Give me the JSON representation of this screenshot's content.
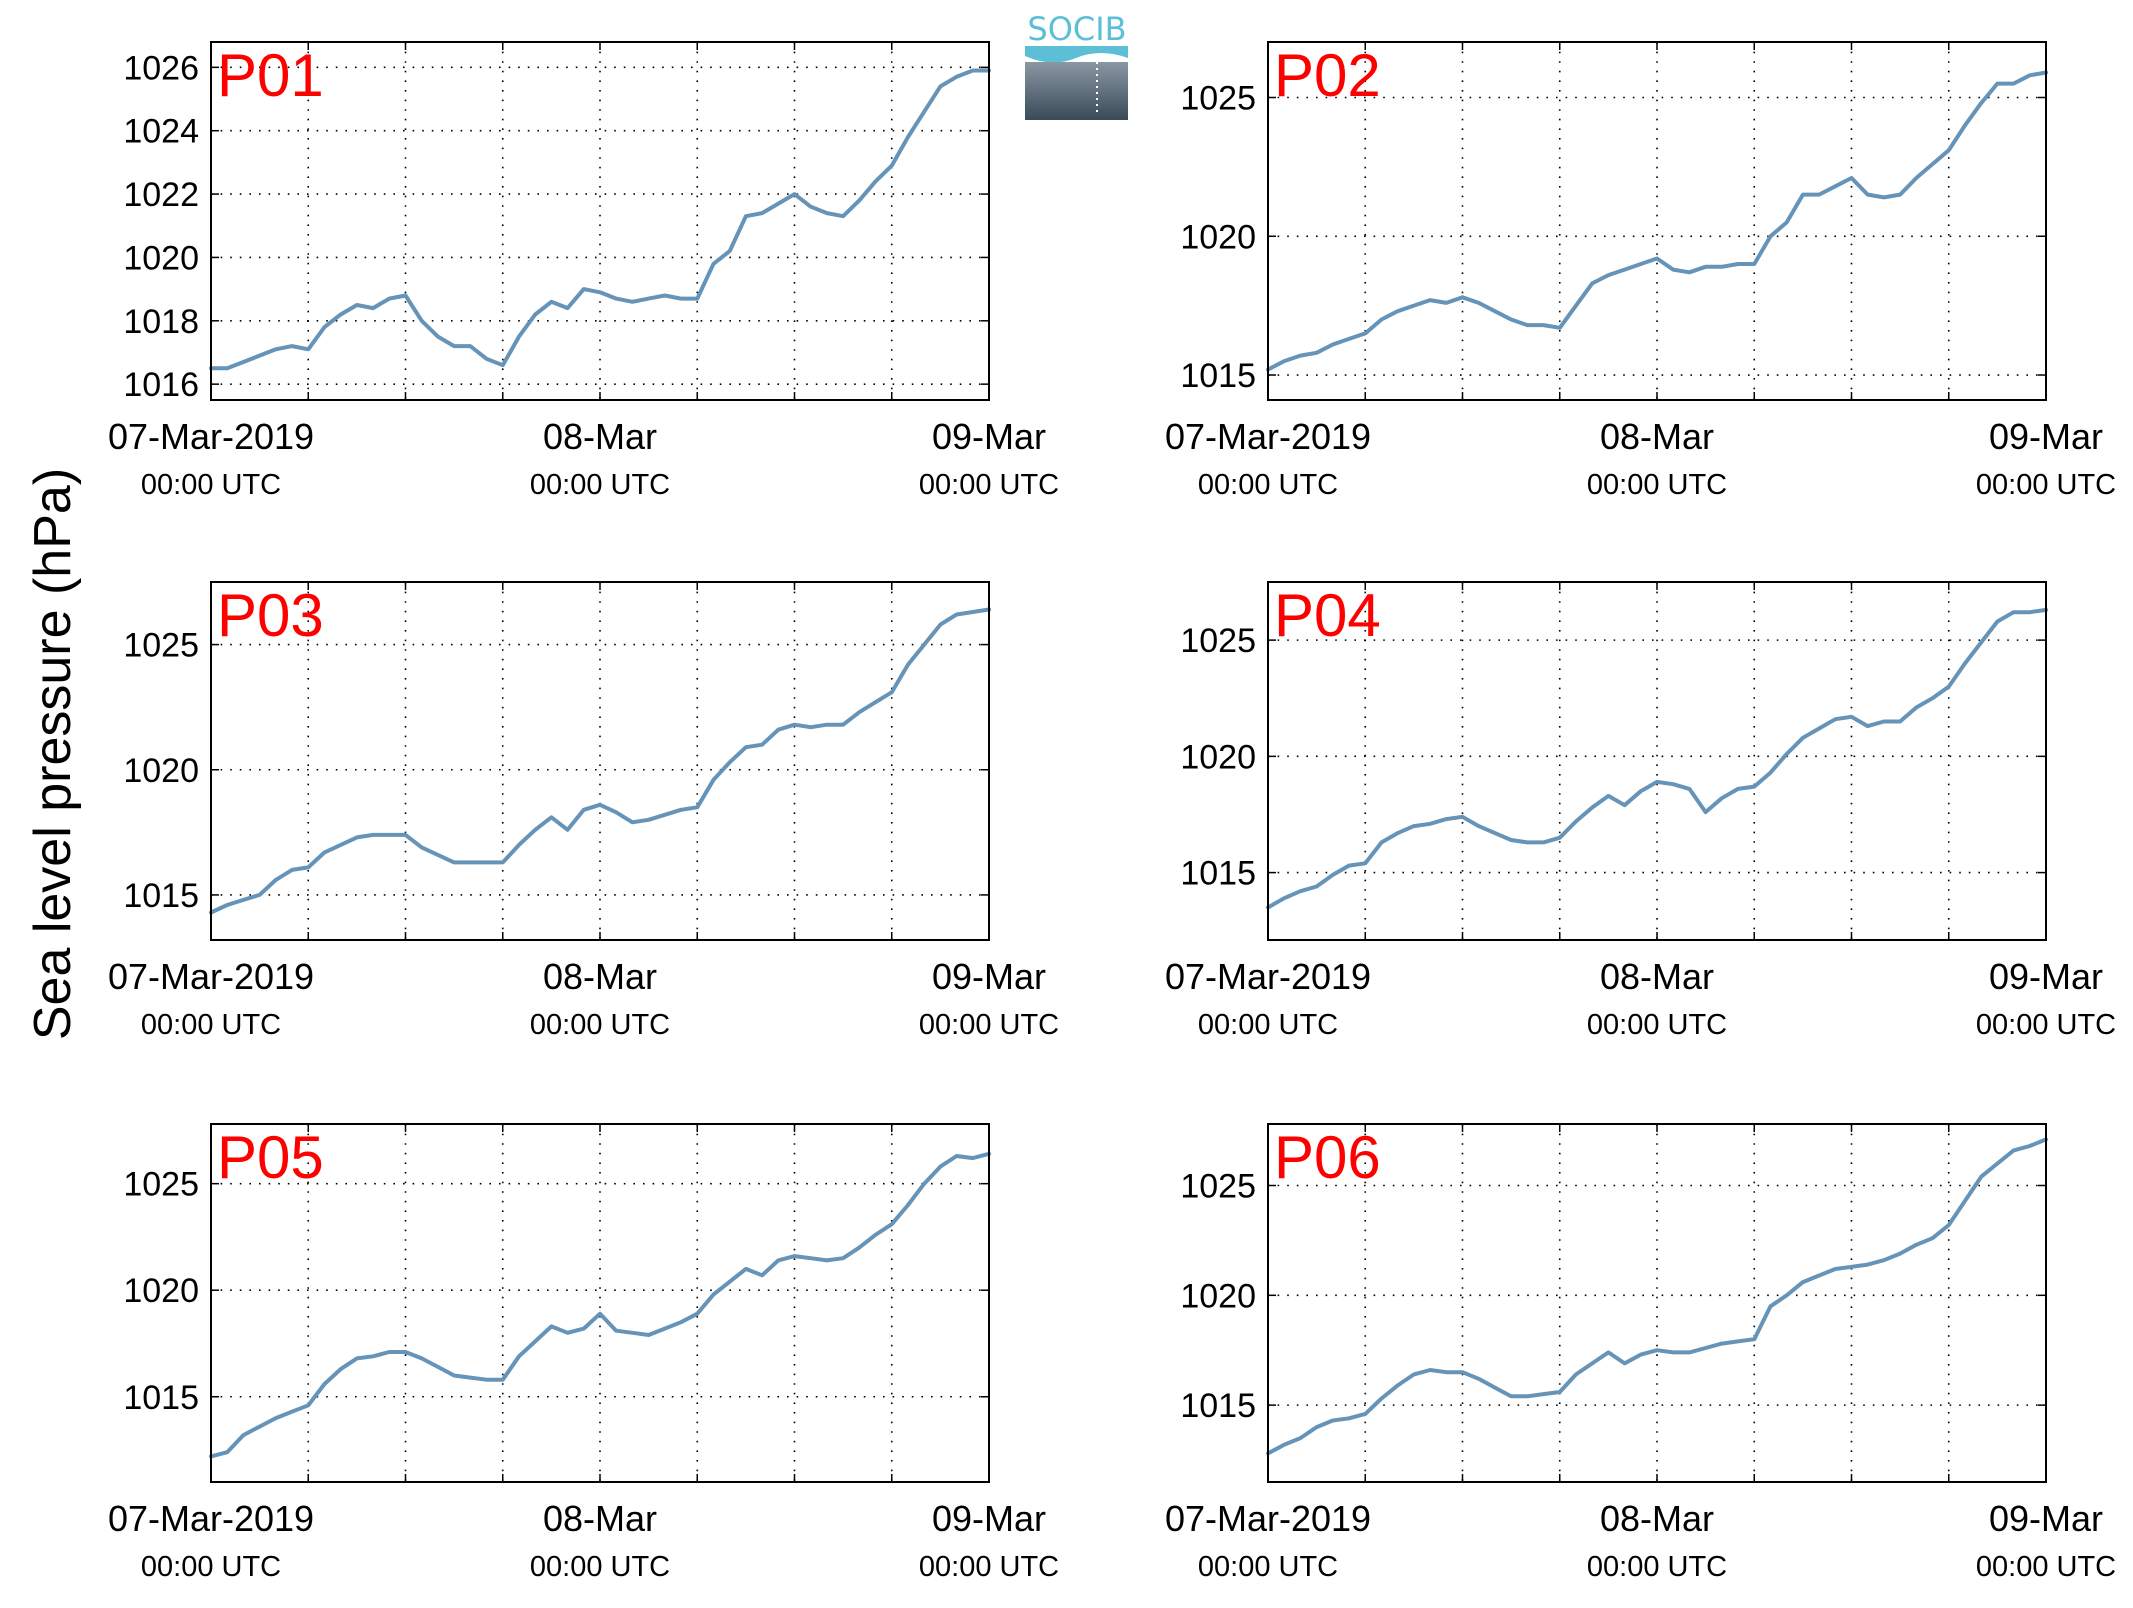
{
  "figure": {
    "ylabel": "Sea level pressure (hPa)",
    "logo_text": "SOCIB",
    "line_color": "#6693b8",
    "label_color": "#ff0000"
  },
  "chart_data": [
    {
      "type": "line",
      "title": "P01",
      "ylim": [
        1015.5,
        1026.8
      ],
      "yticks": [
        1016,
        1018,
        1020,
        1022,
        1024,
        1026
      ],
      "xlim": [
        0,
        48
      ],
      "xticks": [
        0,
        24,
        48
      ],
      "xticklabels": [
        [
          "07-Mar-2019",
          "00:00 UTC"
        ],
        [
          "08-Mar",
          "00:00 UTC"
        ],
        [
          "09-Mar",
          "00:00 UTC"
        ]
      ],
      "grid": true,
      "series": [
        {
          "x": [
            0,
            1,
            2,
            3,
            4,
            5,
            6,
            7,
            8,
            9,
            10,
            11,
            12,
            13,
            14,
            15,
            16,
            17,
            18,
            19,
            20,
            21,
            22,
            23,
            24,
            25,
            26,
            27,
            28,
            29,
            30,
            31,
            32,
            33,
            34,
            35,
            36,
            37,
            38,
            39,
            40,
            41,
            42,
            43,
            44,
            45,
            46,
            47,
            48
          ],
          "y": [
            1016.5,
            1016.5,
            1016.7,
            1016.9,
            1017.1,
            1017.2,
            1017.1,
            1017.8,
            1018.2,
            1018.5,
            1018.4,
            1018.7,
            1018.8,
            1018.0,
            1017.5,
            1017.2,
            1017.2,
            1016.8,
            1016.6,
            1017.5,
            1018.2,
            1018.6,
            1018.4,
            1019.0,
            1018.9,
            1018.7,
            1018.6,
            1018.7,
            1018.8,
            1018.7,
            1018.7,
            1019.8,
            1020.2,
            1021.3,
            1021.4,
            1021.7,
            1022.0,
            1021.6,
            1021.4,
            1021.3,
            1021.8,
            1022.4,
            1022.9,
            1023.8,
            1024.6,
            1025.4,
            1025.7,
            1025.9,
            1025.9
          ]
        }
      ]
    },
    {
      "type": "line",
      "title": "P02",
      "ylim": [
        1014.1,
        1027.0
      ],
      "yticks": [
        1015,
        1020,
        1025
      ],
      "xlim": [
        0,
        48
      ],
      "xticks": [
        0,
        24,
        48
      ],
      "xticklabels": [
        [
          "07-Mar-2019",
          "00:00 UTC"
        ],
        [
          "08-Mar",
          "00:00 UTC"
        ],
        [
          "09-Mar",
          "00:00 UTC"
        ]
      ],
      "grid": true,
      "series": [
        {
          "x": [
            0,
            1,
            2,
            3,
            4,
            5,
            6,
            7,
            8,
            9,
            10,
            11,
            12,
            13,
            14,
            15,
            16,
            17,
            18,
            19,
            20,
            21,
            22,
            23,
            24,
            25,
            26,
            27,
            28,
            29,
            30,
            31,
            32,
            33,
            34,
            35,
            36,
            37,
            38,
            39,
            40,
            41,
            42,
            43,
            44,
            45,
            46,
            47,
            48
          ],
          "y": [
            1015.2,
            1015.5,
            1015.7,
            1015.8,
            1016.1,
            1016.3,
            1016.5,
            1017.0,
            1017.3,
            1017.5,
            1017.7,
            1017.6,
            1017.8,
            1017.6,
            1017.3,
            1017.0,
            1016.8,
            1016.8,
            1016.7,
            1017.5,
            1018.3,
            1018.6,
            1018.8,
            1019.0,
            1019.2,
            1018.8,
            1018.7,
            1018.9,
            1018.9,
            1019.0,
            1019.0,
            1020.0,
            1020.5,
            1021.5,
            1021.5,
            1021.8,
            1022.1,
            1021.5,
            1021.4,
            1021.5,
            1022.1,
            1022.6,
            1023.1,
            1024.0,
            1024.8,
            1025.5,
            1025.5,
            1025.8,
            1025.9
          ]
        }
      ]
    },
    {
      "type": "line",
      "title": "P03",
      "ylim": [
        1013.2,
        1027.5
      ],
      "yticks": [
        1015,
        1020,
        1025
      ],
      "xlim": [
        0,
        48
      ],
      "xticks": [
        0,
        24,
        48
      ],
      "xticklabels": [
        [
          "07-Mar-2019",
          "00:00 UTC"
        ],
        [
          "08-Mar",
          "00:00 UTC"
        ],
        [
          "09-Mar",
          "00:00 UTC"
        ]
      ],
      "grid": true,
      "series": [
        {
          "x": [
            0,
            1,
            2,
            3,
            4,
            5,
            6,
            7,
            8,
            9,
            10,
            11,
            12,
            13,
            14,
            15,
            16,
            17,
            18,
            19,
            20,
            21,
            22,
            23,
            24,
            25,
            26,
            27,
            28,
            29,
            30,
            31,
            32,
            33,
            34,
            35,
            36,
            37,
            38,
            39,
            40,
            41,
            42,
            43,
            44,
            45,
            46,
            47,
            48
          ],
          "y": [
            1014.3,
            1014.6,
            1014.8,
            1015.0,
            1015.6,
            1016.0,
            1016.1,
            1016.7,
            1017.0,
            1017.3,
            1017.4,
            1017.4,
            1017.4,
            1016.9,
            1016.6,
            1016.3,
            1016.3,
            1016.3,
            1016.3,
            1017.0,
            1017.6,
            1018.1,
            1017.6,
            1018.4,
            1018.6,
            1018.3,
            1017.9,
            1018.0,
            1018.2,
            1018.4,
            1018.5,
            1019.6,
            1020.3,
            1020.9,
            1021.0,
            1021.6,
            1021.8,
            1021.7,
            1021.8,
            1021.8,
            1022.3,
            1022.7,
            1023.1,
            1024.2,
            1025.0,
            1025.8,
            1026.2,
            1026.3,
            1026.4
          ]
        }
      ]
    },
    {
      "type": "line",
      "title": "P04",
      "ylim": [
        1012.1,
        1027.5
      ],
      "yticks": [
        1015,
        1020,
        1025
      ],
      "xlim": [
        0,
        48
      ],
      "xticks": [
        0,
        24,
        48
      ],
      "xticklabels": [
        [
          "07-Mar-2019",
          "00:00 UTC"
        ],
        [
          "08-Mar",
          "00:00 UTC"
        ],
        [
          "09-Mar",
          "00:00 UTC"
        ]
      ],
      "grid": true,
      "series": [
        {
          "x": [
            0,
            1,
            2,
            3,
            4,
            5,
            6,
            7,
            8,
            9,
            10,
            11,
            12,
            13,
            14,
            15,
            16,
            17,
            18,
            19,
            20,
            21,
            22,
            23,
            24,
            25,
            26,
            27,
            28,
            29,
            30,
            31,
            32,
            33,
            34,
            35,
            36,
            37,
            38,
            39,
            40,
            41,
            42,
            43,
            44,
            45,
            46,
            47,
            48
          ],
          "y": [
            1013.5,
            1013.9,
            1014.2,
            1014.4,
            1014.9,
            1015.3,
            1015.4,
            1016.3,
            1016.7,
            1017.0,
            1017.1,
            1017.3,
            1017.4,
            1017.0,
            1016.7,
            1016.4,
            1016.3,
            1016.3,
            1016.5,
            1017.2,
            1017.8,
            1018.3,
            1017.9,
            1018.5,
            1018.9,
            1018.8,
            1018.6,
            1017.6,
            1018.2,
            1018.6,
            1018.7,
            1019.3,
            1020.1,
            1020.8,
            1021.2,
            1021.6,
            1021.7,
            1021.3,
            1021.5,
            1021.5,
            1022.1,
            1022.5,
            1023.0,
            1024.0,
            1024.9,
            1025.8,
            1026.2,
            1026.2,
            1026.3
          ]
        }
      ]
    },
    {
      "type": "line",
      "title": "P05",
      "ylim": [
        1011.0,
        1027.8
      ],
      "yticks": [
        1015,
        1020,
        1025
      ],
      "xlim": [
        0,
        48
      ],
      "xticks": [
        0,
        24,
        48
      ],
      "xticklabels": [
        [
          "07-Mar-2019",
          "00:00 UTC"
        ],
        [
          "08-Mar",
          "00:00 UTC"
        ],
        [
          "09-Mar",
          "00:00 UTC"
        ]
      ],
      "grid": true,
      "series": [
        {
          "x": [
            0,
            1,
            2,
            3,
            4,
            5,
            6,
            7,
            8,
            9,
            10,
            11,
            12,
            13,
            14,
            15,
            16,
            17,
            18,
            19,
            20,
            21,
            22,
            23,
            24,
            25,
            26,
            27,
            28,
            29,
            30,
            31,
            32,
            33,
            34,
            35,
            36,
            37,
            38,
            39,
            40,
            41,
            42,
            43,
            44,
            45,
            46,
            47,
            48
          ],
          "y": [
            1012.2,
            1012.4,
            1013.2,
            1013.6,
            1014.0,
            1014.3,
            1014.6,
            1015.6,
            1016.3,
            1016.8,
            1016.9,
            1017.1,
            1017.1,
            1016.8,
            1016.4,
            1016.0,
            1015.9,
            1015.8,
            1015.8,
            1016.9,
            1017.6,
            1018.3,
            1018.0,
            1018.2,
            1018.9,
            1018.1,
            1018.0,
            1017.9,
            1018.2,
            1018.5,
            1018.9,
            1019.8,
            1020.4,
            1021.0,
            1020.7,
            1021.4,
            1021.6,
            1021.5,
            1021.4,
            1021.5,
            1022.0,
            1022.6,
            1023.1,
            1024.0,
            1025.0,
            1025.8,
            1026.3,
            1026.2,
            1026.4
          ]
        }
      ]
    },
    {
      "type": "line",
      "title": "P06",
      "ylim": [
        1011.5,
        1027.8
      ],
      "yticks": [
        1015,
        1020,
        1025
      ],
      "xlim": [
        0,
        48
      ],
      "xticks": [
        0,
        24,
        48
      ],
      "xticklabels": [
        [
          "07-Mar-2019",
          "00:00 UTC"
        ],
        [
          "08-Mar",
          "00:00 UTC"
        ],
        [
          "09-Mar",
          "00:00 UTC"
        ]
      ],
      "grid": true,
      "series": [
        {
          "x": [
            0,
            1,
            2,
            3,
            4,
            5,
            6,
            7,
            8,
            9,
            10,
            11,
            12,
            13,
            14,
            15,
            16,
            17,
            18,
            19,
            20,
            21,
            22,
            23,
            24,
            25,
            26,
            27,
            28,
            29,
            30,
            31,
            32,
            33,
            34,
            35,
            36,
            37,
            38,
            39,
            40,
            41,
            42,
            43,
            44,
            45,
            46,
            47,
            48
          ],
          "y": [
            1012.8,
            1013.2,
            1013.5,
            1014.0,
            1014.3,
            1014.4,
            1014.6,
            1015.3,
            1015.9,
            1016.4,
            1016.6,
            1016.5,
            1016.5,
            1016.2,
            1015.8,
            1015.4,
            1015.4,
            1015.5,
            1015.6,
            1016.4,
            1016.9,
            1017.4,
            1016.9,
            1017.3,
            1017.5,
            1017.4,
            1017.4,
            1017.6,
            1017.8,
            1017.9,
            1018.0,
            1019.5,
            1020.0,
            1020.6,
            1020.9,
            1021.2,
            1021.3,
            1021.4,
            1021.6,
            1021.9,
            1022.3,
            1022.6,
            1023.2,
            1024.3,
            1025.4,
            1026.0,
            1026.6,
            1026.8,
            1027.1
          ]
        }
      ]
    }
  ]
}
